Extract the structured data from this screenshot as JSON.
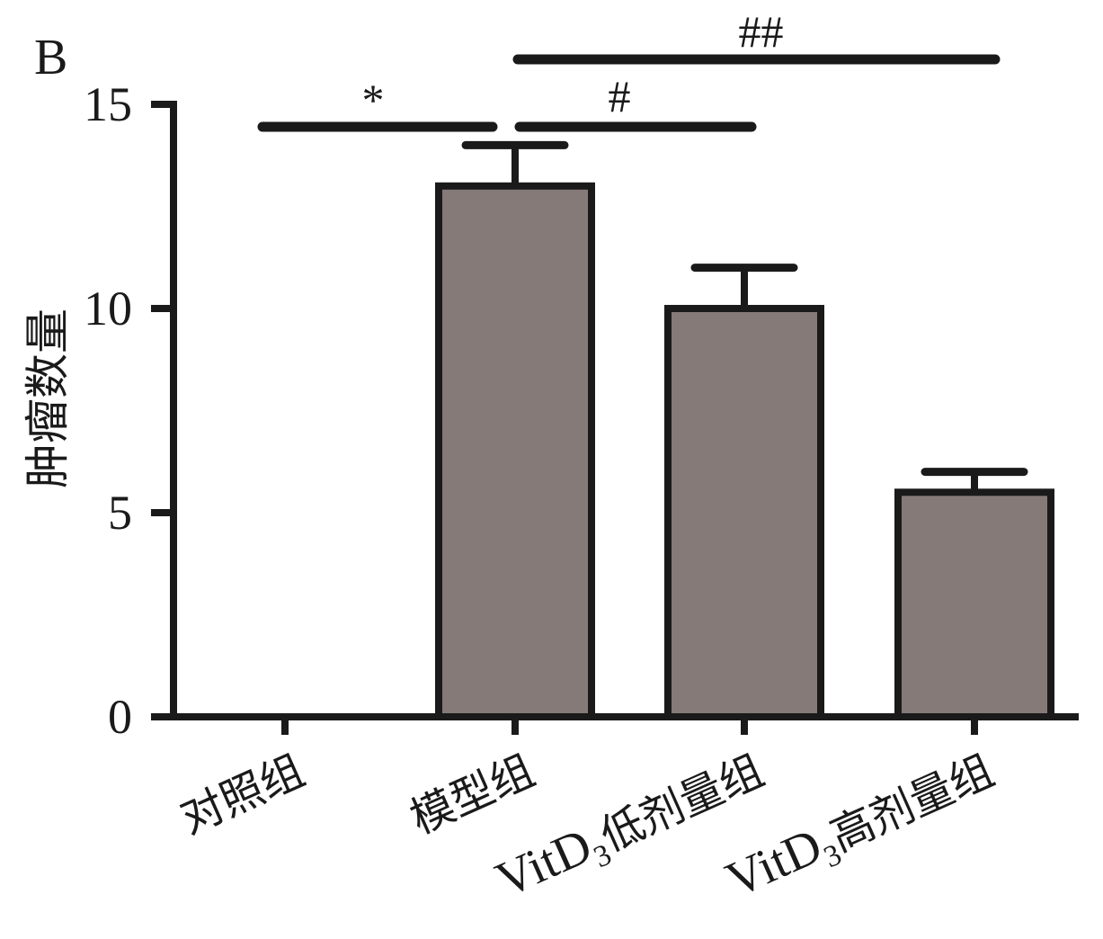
{
  "panel_label": "B",
  "chart_data": {
    "type": "bar",
    "ylabel": "肿瘤数量",
    "ylim": [
      0,
      15
    ],
    "yticks": [
      0,
      5,
      10,
      15
    ],
    "categories": [
      {
        "main": "对照组",
        "pre": "",
        "sub": ""
      },
      {
        "main": "模型组",
        "pre": "",
        "sub": ""
      },
      {
        "main": "低剂量组",
        "pre": "VitD",
        "sub": "3"
      },
      {
        "main": "高剂量组",
        "pre": "VitD",
        "sub": "3"
      }
    ],
    "values": [
      0,
      13,
      10,
      5.5
    ],
    "errors": [
      0,
      1,
      1,
      0.5
    ],
    "bar_color": "#857a78",
    "significance": [
      {
        "from": 0,
        "to": 1,
        "label": "*"
      },
      {
        "from": 1,
        "to": 2,
        "label": "#"
      },
      {
        "from": 1,
        "to": 3,
        "label": "##"
      }
    ]
  }
}
